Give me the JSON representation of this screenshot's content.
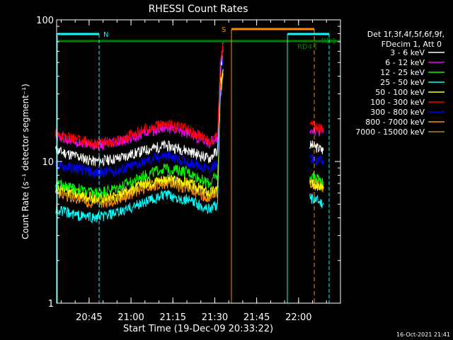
{
  "chart_data": {
    "type": "line",
    "title": "RHESSI Count Rates",
    "xlabel": "Start Time (19-Dec-09 20:33:22)",
    "ylabel": "Count Rate (s⁻¹ detector segment⁻¹)",
    "yscale": "log",
    "ylim": [
      1,
      100
    ],
    "xlim": [
      "20:33:22",
      "22:15:00"
    ],
    "x_ticks": [
      "20:45",
      "21:00",
      "21:15",
      "21:30",
      "21:45",
      "22:00"
    ],
    "y_ticks": [
      "1",
      "10",
      "100"
    ],
    "grid": false,
    "legend_position": "top-right",
    "legend_header": [
      "Det 1f,3f,4f,5f,6f,9f,",
      "FDecim 1, Att 0"
    ],
    "timestamp": "16-Oct-2021 21:41",
    "series": [
      {
        "name": "3 - 6 keV",
        "color": "#ffffff",
        "x": [
          "20:33",
          "20:40",
          "20:47",
          "20:55",
          "21:05",
          "21:12",
          "21:20",
          "21:28",
          "21:31",
          "21:32",
          "21:33",
          "22:04",
          "22:05",
          "22:09"
        ],
        "y": [
          12,
          11,
          10,
          10.5,
          12,
          13,
          12,
          10.5,
          12,
          45,
          60,
          13,
          13,
          12
        ]
      },
      {
        "name": "6 - 12 keV",
        "color": "#ff00ff",
        "x": [
          "20:33",
          "20:40",
          "20:47",
          "20:55",
          "21:05",
          "21:12",
          "21:20",
          "21:28",
          "21:31",
          "21:32",
          "21:33",
          "22:04",
          "22:05",
          "22:09"
        ],
        "y": [
          15,
          14,
          13,
          13.5,
          16,
          17.5,
          16,
          13.5,
          15,
          50,
          65,
          17,
          17,
          16
        ]
      },
      {
        "name": "12 - 25 keV",
        "color": "#00ff00",
        "x": [
          "20:33",
          "20:40",
          "20:47",
          "20:55",
          "21:05",
          "21:12",
          "21:20",
          "21:28",
          "21:31",
          "21:32",
          "21:33",
          "22:04",
          "22:05",
          "22:09"
        ],
        "y": [
          7,
          6.5,
          6,
          6.5,
          8,
          9,
          8.5,
          7,
          8,
          48,
          70,
          8,
          8,
          7
        ]
      },
      {
        "name": "25 - 50 keV",
        "color": "#00ffff",
        "x": [
          "20:33",
          "20:40",
          "20:47",
          "20:55",
          "21:05",
          "21:12",
          "21:20",
          "21:28",
          "21:31",
          "21:32",
          "21:33",
          "22:04",
          "22:05",
          "22:09"
        ],
        "y": [
          4.6,
          4.2,
          4,
          4.3,
          5.2,
          5.8,
          5.4,
          4.6,
          5,
          30,
          40,
          5.5,
          5.5,
          5
        ]
      },
      {
        "name": "50 - 100 keV",
        "color": "#ffff00",
        "x": [
          "20:33",
          "20:40",
          "20:47",
          "20:55",
          "21:05",
          "21:12",
          "21:20",
          "21:28",
          "21:31",
          "21:32",
          "21:33",
          "22:04",
          "22:05",
          "22:09"
        ],
        "y": [
          6.5,
          6,
          5.5,
          5.8,
          7,
          7.6,
          7.2,
          6,
          6.5,
          35,
          45,
          7,
          7,
          6.5
        ]
      },
      {
        "name": "100 - 300 keV",
        "color": "#ff0000",
        "x": [
          "20:33",
          "20:40",
          "20:47",
          "20:55",
          "21:05",
          "21:12",
          "21:20",
          "21:28",
          "21:31",
          "21:32",
          "21:33",
          "22:04",
          "22:05",
          "22:09"
        ],
        "y": [
          15.5,
          14.5,
          13.5,
          14,
          17,
          18.5,
          17,
          14,
          15,
          50,
          68,
          18,
          18,
          17
        ]
      },
      {
        "name": "300 - 800 keV",
        "color": "#0000ff",
        "x": [
          "20:33",
          "20:40",
          "20:47",
          "20:55",
          "21:05",
          "21:12",
          "21:20",
          "21:28",
          "21:31",
          "21:32",
          "21:33",
          "22:04",
          "22:05",
          "22:09"
        ],
        "y": [
          9.5,
          9,
          8.3,
          8.6,
          10,
          11,
          10,
          8.8,
          9.5,
          40,
          55,
          10.5,
          10.5,
          10
        ]
      },
      {
        "name": "800 - 7000 keV",
        "color": "#ff8c00",
        "x": [
          "20:33",
          "20:40",
          "20:47",
          "20:55",
          "21:05",
          "21:12",
          "21:20",
          "21:28",
          "21:31",
          "21:32",
          "21:33",
          "22:04",
          "22:05",
          "22:09"
        ],
        "y": [
          6,
          5.5,
          5,
          5.3,
          6.5,
          7,
          6.5,
          5.5,
          6,
          32,
          42,
          7,
          7,
          6.5
        ]
      },
      {
        "name": "7000 - 15000 keV",
        "color": "#b8860b",
        "x": [
          "20:33",
          "20:40",
          "20:47",
          "20:55",
          "21:05",
          "21:12",
          "21:20",
          "21:28",
          "21:31",
          "21:32",
          "21:33",
          "22:04",
          "22:05",
          "22:09"
        ],
        "y": [
          6.3,
          5.8,
          5.3,
          5.6,
          6.8,
          7.3,
          6.8,
          5.8,
          6.2,
          34,
          44,
          7.2,
          7.2,
          6.8
        ]
      }
    ],
    "attenuator_bar": {
      "color": "#008000"
    },
    "annotations": [
      {
        "text": "N",
        "color": "#00ffff"
      },
      {
        "text": "S",
        "color": "#ff8c00"
      },
      {
        "text": "RD4",
        "color": "#008000"
      },
      {
        "text": "RD0",
        "color": "#008000"
      }
    ]
  }
}
